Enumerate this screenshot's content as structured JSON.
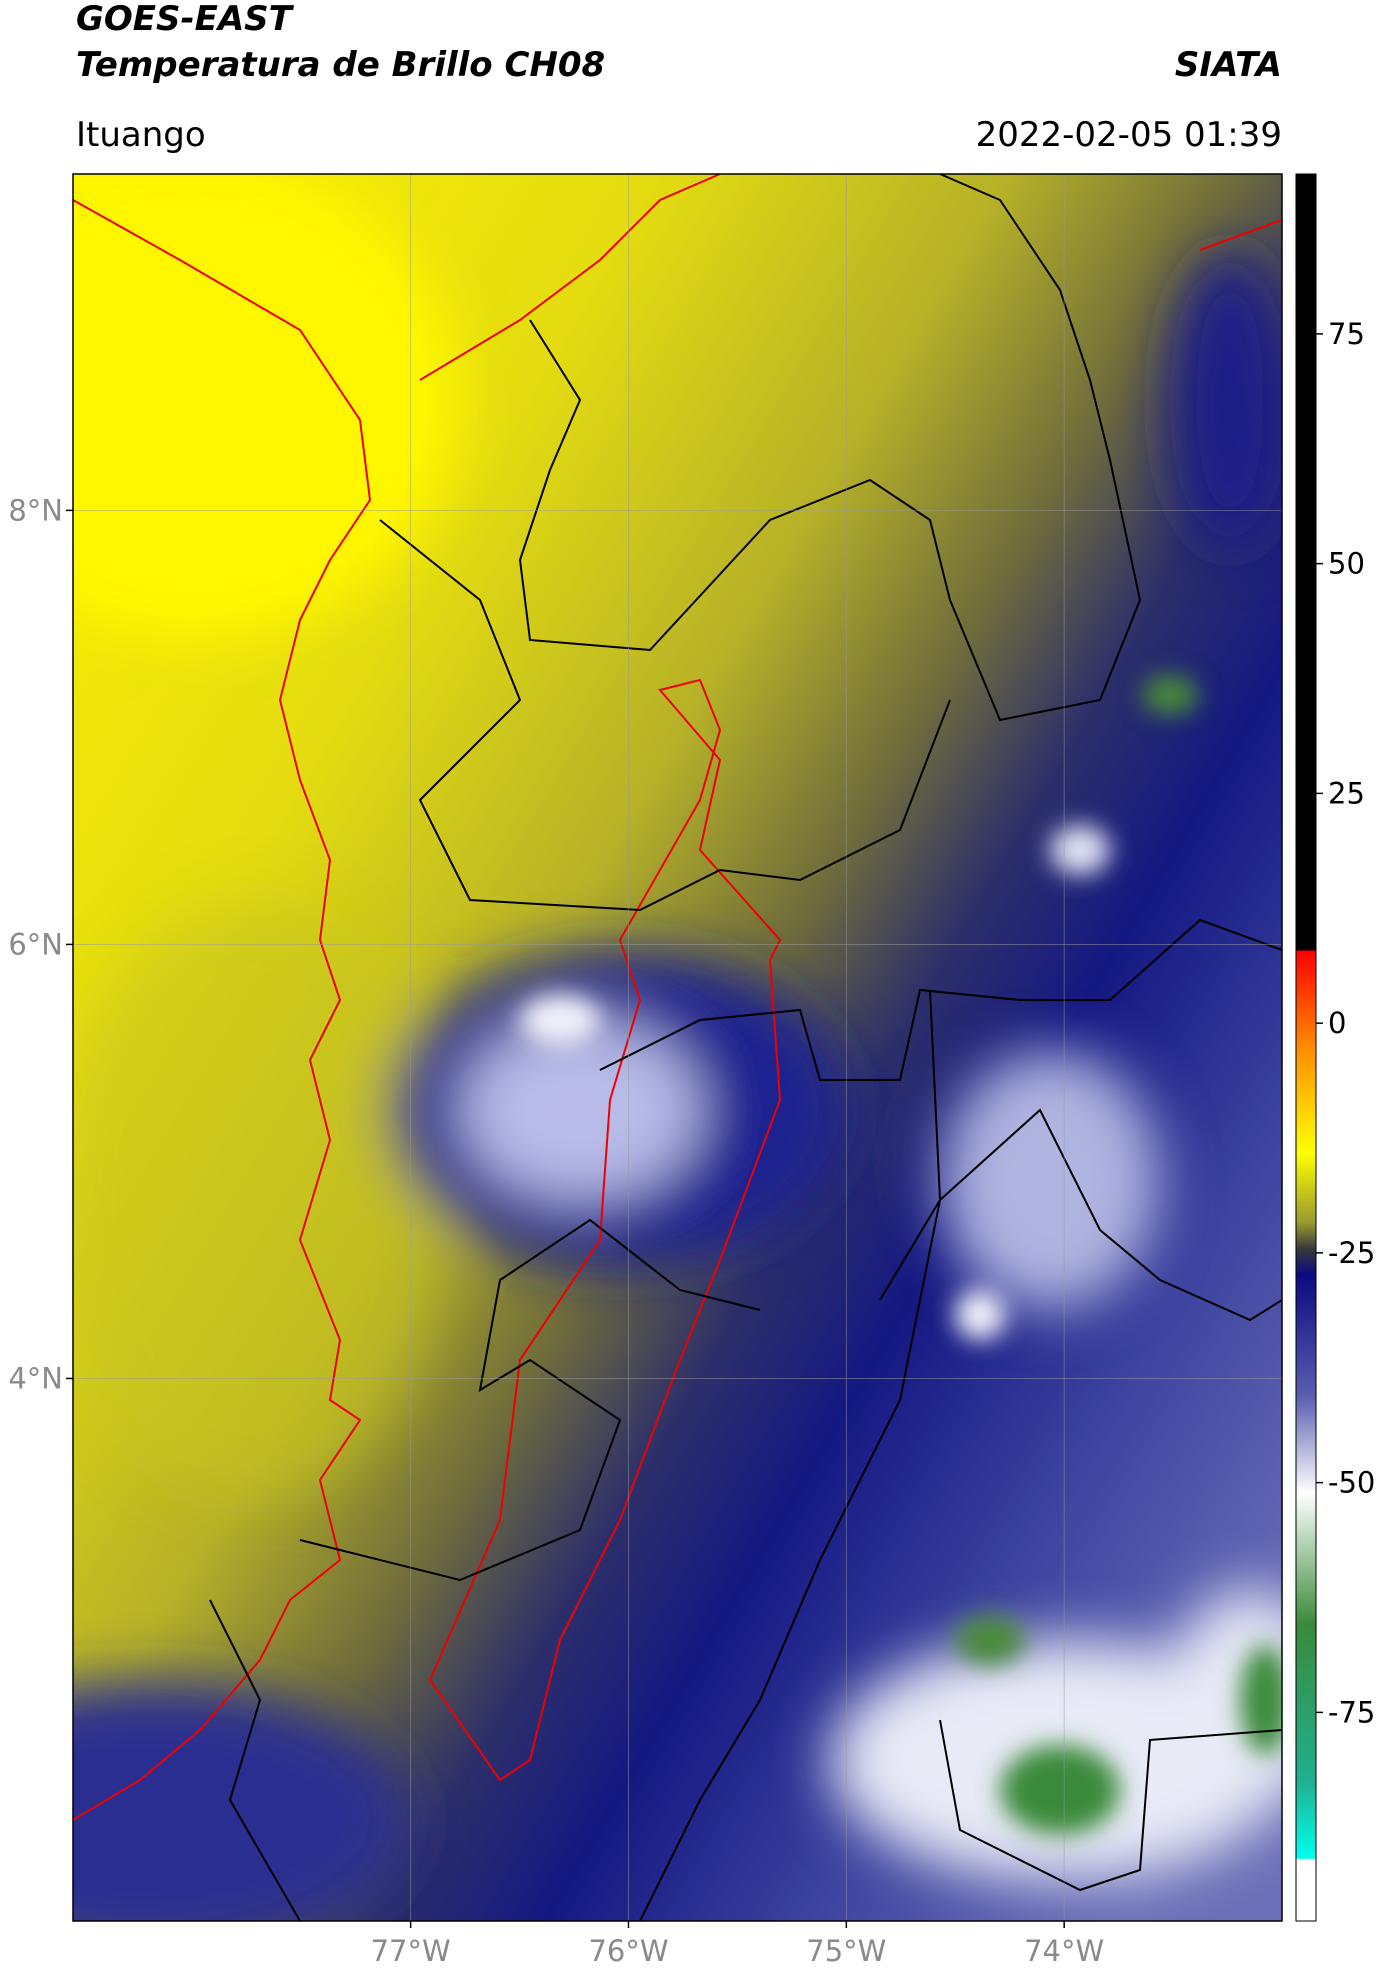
{
  "header": {
    "title": "GOES-EAST",
    "subtitle": "Temperatura de Brillo CH08",
    "source": "SIATA",
    "location": "Ituango",
    "timestamp": "2022-02-05 01:39"
  },
  "map": {
    "xlim": [
      -78.55,
      -73
    ],
    "ylim": [
      1.5,
      9.55
    ],
    "xticks": [
      {
        "value": -77,
        "label": "77°W"
      },
      {
        "value": -76,
        "label": "76°W"
      },
      {
        "value": -75,
        "label": "75°W"
      },
      {
        "value": -74,
        "label": "74°W"
      }
    ],
    "yticks": [
      {
        "value": 8,
        "label": "8°N"
      },
      {
        "value": 6,
        "label": "6°N"
      },
      {
        "value": 4,
        "label": "4°N"
      }
    ],
    "grid": true,
    "colorbar": {
      "lim": [
        -97.7,
        92.4
      ],
      "ticks": [
        75,
        50,
        25,
        0,
        -25,
        -50,
        -75
      ]
    }
  }
}
